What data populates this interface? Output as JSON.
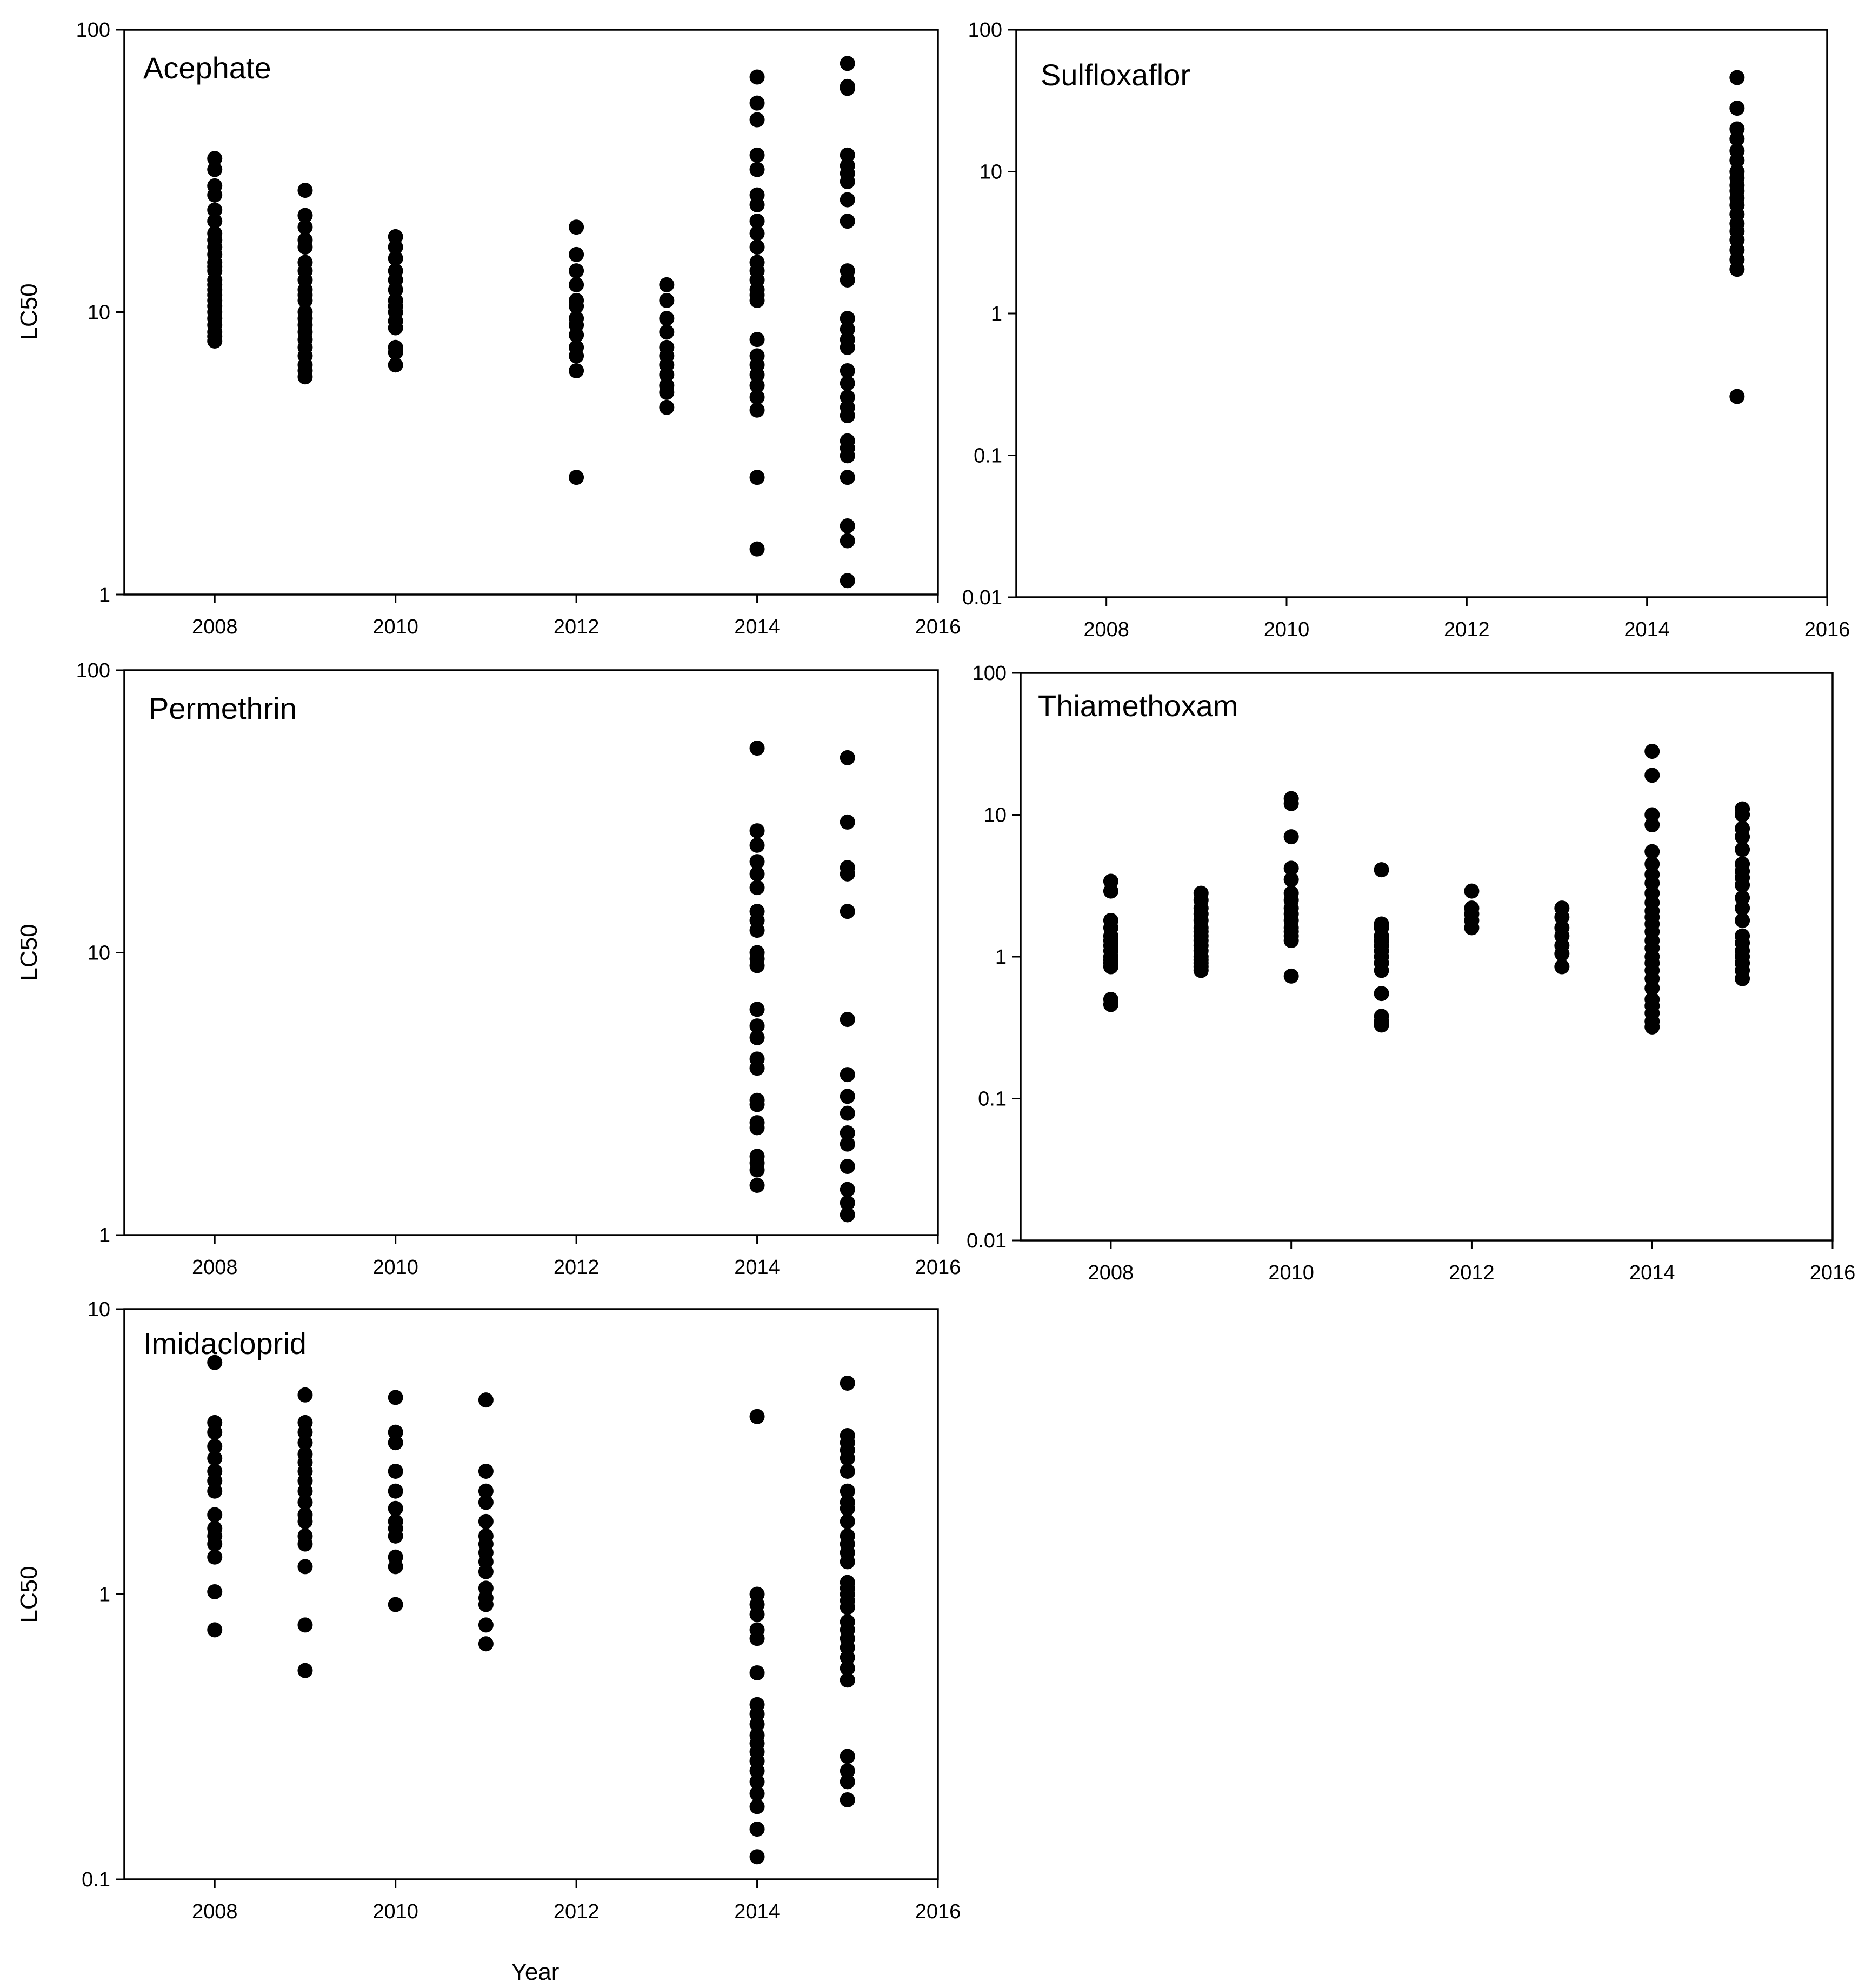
{
  "figure": {
    "x_axis_title": "Year",
    "y_axis_title": "LC50"
  },
  "chart_data": [
    {
      "type": "scatter",
      "title": "Acephate",
      "xlabel": "",
      "ylabel": "LC50",
      "yscale": "log",
      "xlim": [
        2007,
        2016
      ],
      "ylim": [
        1,
        100
      ],
      "xticks": [
        2008,
        2010,
        2012,
        2014,
        2016
      ],
      "xtick_labels": [
        "2008",
        "2010",
        "2012",
        "2014",
        "2016"
      ],
      "yticks": [
        1,
        10,
        100
      ],
      "ytick_labels": [
        "1",
        "10",
        "100"
      ],
      "series": [
        {
          "x": 2008,
          "y": [
            35,
            32,
            28,
            26,
            23,
            21,
            19,
            18,
            17,
            16,
            15,
            14.5,
            14,
            13,
            12.5,
            12,
            11.5,
            11,
            10.5,
            10,
            9.5,
            9,
            8.5,
            8.2,
            7.9
          ]
        },
        {
          "x": 2009,
          "y": [
            27,
            22,
            20,
            18,
            17,
            15,
            14,
            13,
            12,
            11.5,
            11,
            10,
            9.5,
            9,
            8.5,
            8,
            7.5,
            7,
            6.5,
            6.2,
            5.9
          ]
        },
        {
          "x": 2010,
          "y": [
            18.5,
            17,
            15.5,
            14,
            13,
            12,
            11,
            10.5,
            10,
            9.3,
            8.8,
            7.5,
            7.2,
            6.5
          ]
        },
        {
          "x": 2012,
          "y": [
            20,
            16,
            14,
            12.5,
            11,
            10.5,
            9.5,
            9,
            8.3,
            7.5,
            7,
            6.2,
            2.6
          ]
        },
        {
          "x": 2013,
          "y": [
            12.5,
            11,
            9.5,
            8.5,
            7.5,
            7,
            6.5,
            6,
            5.5,
            5.2,
            4.6
          ]
        },
        {
          "x": 2014,
          "y": [
            68,
            55,
            48,
            36,
            32,
            26,
            24,
            21,
            19,
            17,
            15,
            14,
            13,
            12,
            11.5,
            11,
            8,
            7,
            6.5,
            6,
            5.5,
            5,
            4.5,
            2.6,
            1.45
          ]
        },
        {
          "x": 2015,
          "y": [
            76,
            63,
            62,
            36,
            33,
            31,
            29,
            25,
            21,
            14,
            13,
            9.5,
            8.7,
            8,
            7.5,
            6.2,
            5.6,
            5,
            4.6,
            4.3,
            3.5,
            3.3,
            3.1,
            2.6,
            1.75,
            1.55,
            1.12
          ]
        }
      ]
    },
    {
      "type": "scatter",
      "title": "Sulfloxaflor",
      "xlabel": "",
      "ylabel": "",
      "yscale": "log",
      "xlim": [
        2007,
        2016
      ],
      "ylim": [
        0.01,
        100
      ],
      "xticks": [
        2008,
        2010,
        2012,
        2014,
        2016
      ],
      "xtick_labels": [
        "2008",
        "2010",
        "2012",
        "2014",
        "2016"
      ],
      "yticks": [
        0.01,
        0.1,
        1,
        10,
        100
      ],
      "ytick_labels": [
        "0.01",
        "0.1",
        "1",
        "10",
        "100"
      ],
      "series": [
        {
          "x": 2015,
          "y": [
            46,
            28,
            20,
            17,
            14,
            12,
            10,
            9,
            8,
            7.3,
            6.5,
            5.8,
            5,
            4.3,
            3.8,
            3.3,
            2.8,
            2.4,
            2.05,
            0.26
          ]
        }
      ]
    },
    {
      "type": "scatter",
      "title": "Permethrin",
      "xlabel": "",
      "ylabel": "LC50",
      "yscale": "log",
      "xlim": [
        2007,
        2016
      ],
      "ylim": [
        1,
        100
      ],
      "xticks": [
        2008,
        2010,
        2012,
        2014,
        2016
      ],
      "xtick_labels": [
        "2008",
        "2010",
        "2012",
        "2014",
        "2016"
      ],
      "yticks": [
        1,
        10,
        100
      ],
      "ytick_labels": [
        "1",
        "10",
        "100"
      ],
      "series": [
        {
          "x": 2014,
          "y": [
            53,
            27,
            24,
            21,
            19,
            17,
            14,
            13,
            12,
            10,
            9.5,
            9,
            6.3,
            5.5,
            5,
            4.2,
            3.9,
            3,
            2.9,
            2.5,
            2.4,
            1.9,
            1.8,
            1.7,
            1.5
          ]
        },
        {
          "x": 2015,
          "y": [
            49,
            29,
            20,
            19,
            14,
            5.8,
            3.7,
            3.1,
            2.7,
            2.3,
            2.1,
            1.75,
            1.45,
            1.3,
            1.18
          ]
        }
      ]
    },
    {
      "type": "scatter",
      "title": "Thiamethoxam",
      "xlabel": "",
      "ylabel": "",
      "yscale": "log",
      "xlim": [
        2007,
        2016
      ],
      "ylim": [
        0.01,
        100
      ],
      "xticks": [
        2008,
        2010,
        2012,
        2014,
        2016
      ],
      "xtick_labels": [
        "2008",
        "2010",
        "2012",
        "2014",
        "2016"
      ],
      "yticks": [
        0.01,
        0.1,
        1,
        10,
        100
      ],
      "ytick_labels": [
        "0.01",
        "0.1",
        "1",
        "10",
        "100"
      ],
      "series": [
        {
          "x": 2008,
          "y": [
            3.4,
            2.9,
            1.8,
            1.6,
            1.4,
            1.3,
            1.2,
            1.1,
            1,
            0.95,
            0.9,
            0.85,
            0.5,
            0.46
          ]
        },
        {
          "x": 2009,
          "y": [
            2.8,
            2.5,
            2.2,
            2,
            1.8,
            1.6,
            1.5,
            1.4,
            1.3,
            1.2,
            1.1,
            1,
            0.95,
            0.9,
            0.85,
            0.8
          ]
        },
        {
          "x": 2010,
          "y": [
            13,
            12,
            7,
            4.2,
            3.5,
            2.8,
            2.5,
            2.2,
            2,
            1.8,
            1.6,
            1.5,
            1.4,
            1.3,
            0.73
          ]
        },
        {
          "x": 2011,
          "y": [
            4.1,
            1.7,
            1.6,
            1.4,
            1.3,
            1.2,
            1.1,
            1,
            0.9,
            0.8,
            0.55,
            0.38,
            0.35,
            0.33
          ]
        },
        {
          "x": 2012,
          "y": [
            2.9,
            2.2,
            2,
            1.8,
            1.6
          ]
        },
        {
          "x": 2013,
          "y": [
            2.2,
            1.9,
            1.6,
            1.4,
            1.2,
            1.05,
            0.85
          ]
        },
        {
          "x": 2014,
          "y": [
            28,
            19,
            10,
            8.5,
            5.5,
            4.5,
            3.8,
            3.3,
            2.8,
            2.4,
            2.1,
            1.9,
            1.7,
            1.5,
            1.3,
            1.15,
            1,
            0.9,
            0.8,
            0.7,
            0.6,
            0.5,
            0.45,
            0.4,
            0.35,
            0.32
          ]
        },
        {
          "x": 2015,
          "y": [
            11,
            10,
            8,
            7,
            5.7,
            4.5,
            4,
            3.6,
            3.2,
            2.6,
            2.2,
            1.8,
            1.4,
            1.25,
            1.1,
            1,
            0.9,
            0.8,
            0.7
          ]
        }
      ]
    },
    {
      "type": "scatter",
      "title": "Imidacloprid",
      "xlabel": "Year",
      "ylabel": "LC50",
      "yscale": "log",
      "xlim": [
        2007,
        2016
      ],
      "ylim": [
        0.1,
        10
      ],
      "xticks": [
        2008,
        2010,
        2012,
        2014,
        2016
      ],
      "xtick_labels": [
        "2008",
        "2010",
        "2012",
        "2014",
        "2016"
      ],
      "yticks": [
        0.1,
        1,
        10
      ],
      "ytick_labels": [
        "0.1",
        "1",
        "10"
      ],
      "series": [
        {
          "x": 2008,
          "y": [
            6.5,
            4,
            3.7,
            3.3,
            3,
            2.7,
            2.5,
            2.3,
            1.9,
            1.7,
            1.6,
            1.5,
            1.35,
            1.02,
            0.75
          ]
        },
        {
          "x": 2009,
          "y": [
            5,
            4,
            3.7,
            3.4,
            3.1,
            2.9,
            2.7,
            2.5,
            2.3,
            2.1,
            1.9,
            1.8,
            1.6,
            1.5,
            1.25,
            0.78,
            0.54
          ]
        },
        {
          "x": 2010,
          "y": [
            4.9,
            3.7,
            3.4,
            2.7,
            2.3,
            2,
            1.8,
            1.7,
            1.6,
            1.35,
            1.25,
            0.92
          ]
        },
        {
          "x": 2011,
          "y": [
            4.8,
            2.7,
            2.3,
            2.1,
            1.8,
            1.6,
            1.5,
            1.4,
            1.3,
            1.2,
            1.05,
            0.97,
            0.92,
            0.78,
            0.67
          ]
        },
        {
          "x": 2014,
          "y": [
            4.2,
            1,
            0.92,
            0.85,
            0.75,
            0.7,
            0.53,
            0.41,
            0.38,
            0.35,
            0.32,
            0.3,
            0.28,
            0.26,
            0.24,
            0.22,
            0.2,
            0.18,
            0.15,
            0.12
          ]
        },
        {
          "x": 2015,
          "y": [
            5.5,
            3.6,
            3.4,
            3.2,
            3,
            2.7,
            2.3,
            2.1,
            2,
            1.8,
            1.6,
            1.5,
            1.4,
            1.3,
            1.1,
            1.05,
            1,
            0.95,
            0.9,
            0.8,
            0.75,
            0.7,
            0.65,
            0.6,
            0.55,
            0.5,
            0.27,
            0.24,
            0.22,
            0.19
          ]
        }
      ]
    }
  ]
}
